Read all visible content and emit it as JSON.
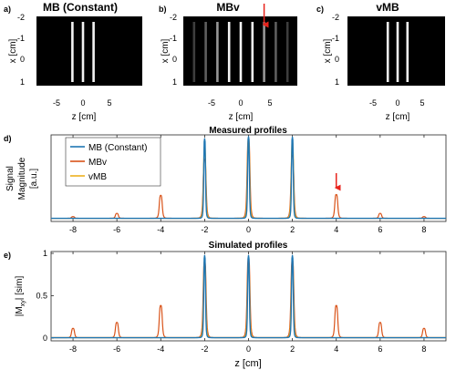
{
  "colors": {
    "mb_constant": "#1f77b4",
    "mbv": "#d95319",
    "vmb": "#edb120",
    "arrow": "#e8231c",
    "image_bg": "#000000"
  },
  "images": [
    {
      "panel_label": "a)",
      "title": "MB (Constant)",
      "xlabel": "z [cm]",
      "ylabel": "x [cm]",
      "xticks": [
        "-5",
        "0",
        "5"
      ],
      "yticks": [
        "-2",
        "-1",
        "0",
        "1"
      ],
      "stripes": [
        {
          "z": -2,
          "strength": 1
        },
        {
          "z": 0,
          "strength": 1
        },
        {
          "z": 2,
          "strength": 1
        }
      ],
      "arrow_at_z": null
    },
    {
      "panel_label": "b)",
      "title": "MBv",
      "xlabel": "z [cm]",
      "ylabel": "x [cm]",
      "xticks": [
        "-5",
        "0",
        "5"
      ],
      "yticks": [
        "-2",
        "-1",
        "0",
        "1"
      ],
      "stripes": [
        {
          "z": -8,
          "strength": 0.12
        },
        {
          "z": -6,
          "strength": 0.28
        },
        {
          "z": -4,
          "strength": 0.55
        },
        {
          "z": -2,
          "strength": 1
        },
        {
          "z": 0,
          "strength": 1
        },
        {
          "z": 2,
          "strength": 1
        },
        {
          "z": 4,
          "strength": 0.55
        },
        {
          "z": 6,
          "strength": 0.28
        },
        {
          "z": 8,
          "strength": 0.12
        }
      ],
      "arrow_at_z": 4
    },
    {
      "panel_label": "c)",
      "title": "vMB",
      "xlabel": "z [cm]",
      "ylabel": "x [cm]",
      "xticks": [
        "-5",
        "0",
        "5"
      ],
      "yticks": [
        "-2",
        "-1",
        "0",
        "1"
      ],
      "stripes": [
        {
          "z": -2,
          "strength": 1
        },
        {
          "z": 0,
          "strength": 1
        },
        {
          "z": 2,
          "strength": 1
        }
      ],
      "arrow_at_z": null
    }
  ],
  "chart_data": [
    {
      "type": "line",
      "panel_label": "d)",
      "title": "Measured profiles",
      "xlabel": "z [cm]",
      "ylabel": [
        "Signal",
        "Magnitude",
        "[a.u.]"
      ],
      "xlim": [
        -9,
        9
      ],
      "ylim": [
        0,
        1
      ],
      "xticks": [
        -8,
        -6,
        -4,
        -2,
        0,
        2,
        4,
        6,
        8
      ],
      "show_xtick_labels": true,
      "show_yticks": false,
      "legend": [
        "MB (Constant)",
        "MBv",
        "vMB"
      ],
      "legend_position": "top-left",
      "arrow_at_x": 4,
      "series": [
        {
          "name": "MB (Constant)",
          "color": "#1f77b4",
          "peaks": [
            {
              "x": -2,
              "y": 0.97
            },
            {
              "x": 0,
              "y": 1.0
            },
            {
              "x": 2,
              "y": 0.99
            }
          ]
        },
        {
          "name": "MBv",
          "color": "#d95319",
          "peaks": [
            {
              "x": -8,
              "y": 0.02
            },
            {
              "x": -6,
              "y": 0.06
            },
            {
              "x": -4,
              "y": 0.28
            },
            {
              "x": -2,
              "y": 0.72
            },
            {
              "x": 0,
              "y": 0.95
            },
            {
              "x": 2,
              "y": 0.77
            },
            {
              "x": 4,
              "y": 0.29
            },
            {
              "x": 6,
              "y": 0.06
            },
            {
              "x": 8,
              "y": 0.02
            }
          ]
        },
        {
          "name": "vMB",
          "color": "#edb120",
          "peaks": [
            {
              "x": -2,
              "y": 0.88
            },
            {
              "x": 0,
              "y": 0.97
            },
            {
              "x": 2,
              "y": 0.93
            }
          ]
        }
      ]
    },
    {
      "type": "line",
      "panel_label": "e)",
      "title": "Simulated profiles",
      "xlabel": "z [cm]",
      "ylabel": "|M",
      "ylabel_subscript": "xy",
      "ylabel_suffix": "| [sim]",
      "xlim": [
        -9,
        9
      ],
      "ylim": [
        0,
        1
      ],
      "xticks": [
        -8,
        -6,
        -4,
        -2,
        0,
        2,
        4,
        6,
        8
      ],
      "yticks": [
        0,
        0.5,
        1
      ],
      "ytick_labels": [
        "0",
        "0.5",
        "1"
      ],
      "show_xtick_labels": true,
      "show_yticks": true,
      "series": [
        {
          "name": "MB (Constant)",
          "color": "#1f77b4",
          "peaks": [
            {
              "x": -2,
              "y": 0.97
            },
            {
              "x": 0,
              "y": 0.97
            },
            {
              "x": 2,
              "y": 0.97
            }
          ]
        },
        {
          "name": "MBv",
          "color": "#d95319",
          "peaks": [
            {
              "x": -8,
              "y": 0.11
            },
            {
              "x": -6,
              "y": 0.18
            },
            {
              "x": -4,
              "y": 0.38
            },
            {
              "x": -2,
              "y": 0.9
            },
            {
              "x": 0,
              "y": 0.93
            },
            {
              "x": 2,
              "y": 0.91
            },
            {
              "x": 4,
              "y": 0.38
            },
            {
              "x": 6,
              "y": 0.18
            },
            {
              "x": 8,
              "y": 0.11
            }
          ]
        },
        {
          "name": "vMB",
          "color": "#edb120",
          "peaks": [
            {
              "x": -2,
              "y": 0.87
            },
            {
              "x": 0,
              "y": 0.87
            },
            {
              "x": 2,
              "y": 0.87
            }
          ]
        }
      ]
    }
  ]
}
